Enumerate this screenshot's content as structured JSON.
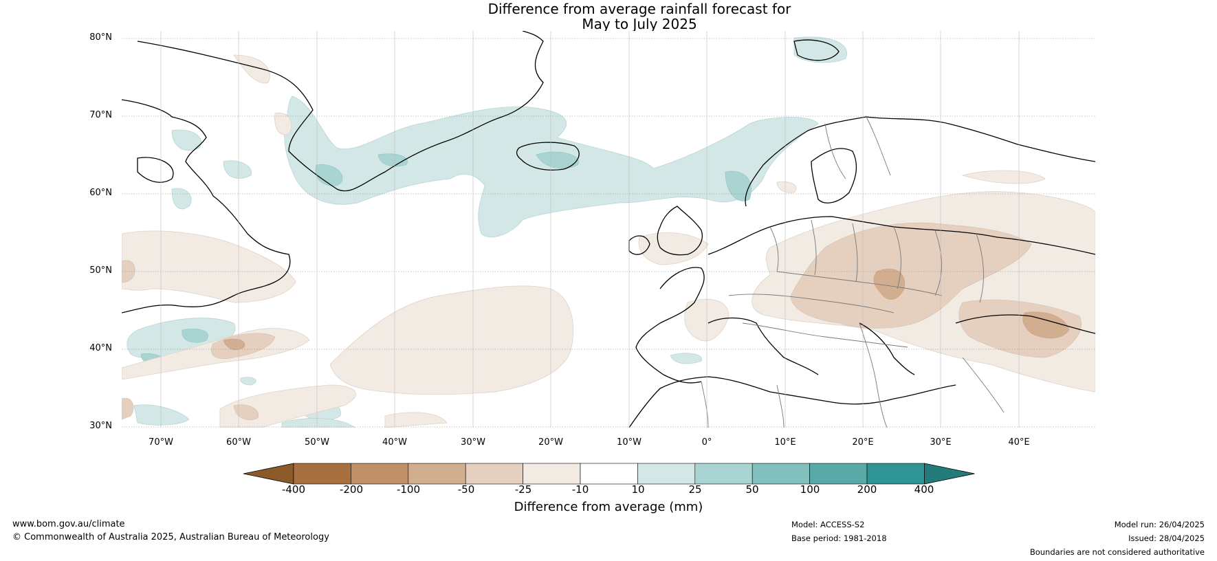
{
  "title_line1": "Difference from average rainfall forecast for",
  "title_line2": "May to July 2025",
  "lat_labels": [
    "80°N",
    "70°N",
    "60°N",
    "50°N",
    "40°N",
    "30°N"
  ],
  "lon_labels": [
    "70°W",
    "60°W",
    "50°W",
    "40°W",
    "30°W",
    "20°W",
    "10°W",
    "0°",
    "10°E",
    "20°E",
    "30°E",
    "40°E"
  ],
  "colorbar": {
    "title": "Difference from average (mm)",
    "tick_labels": [
      "-400",
      "-200",
      "-100",
      "-50",
      "-25",
      "-10",
      "10",
      "25",
      "50",
      "100",
      "200",
      "400"
    ],
    "colors": [
      "#8b5a2b",
      "#a8703f",
      "#c09068",
      "#d2ae90",
      "#e5d0c0",
      "#f2ebe4",
      "#ffffff",
      "#d3e8e6",
      "#a9d4d2",
      "#82c0bd",
      "#58a9a8",
      "#2f9594",
      "#237c7a"
    ]
  },
  "footer": {
    "website": "www.bom.gov.au/climate",
    "copyright": "© Commonwealth of Australia 2025, Australian Bureau of Meteorology",
    "model": "Model: ACCESS-S2",
    "base_period": "Base period: 1981-2018",
    "model_run": "Model run: 26/04/2025",
    "issued": "Issued: 28/04/2025",
    "disclaimer": "Boundaries are not considered authoritative"
  }
}
